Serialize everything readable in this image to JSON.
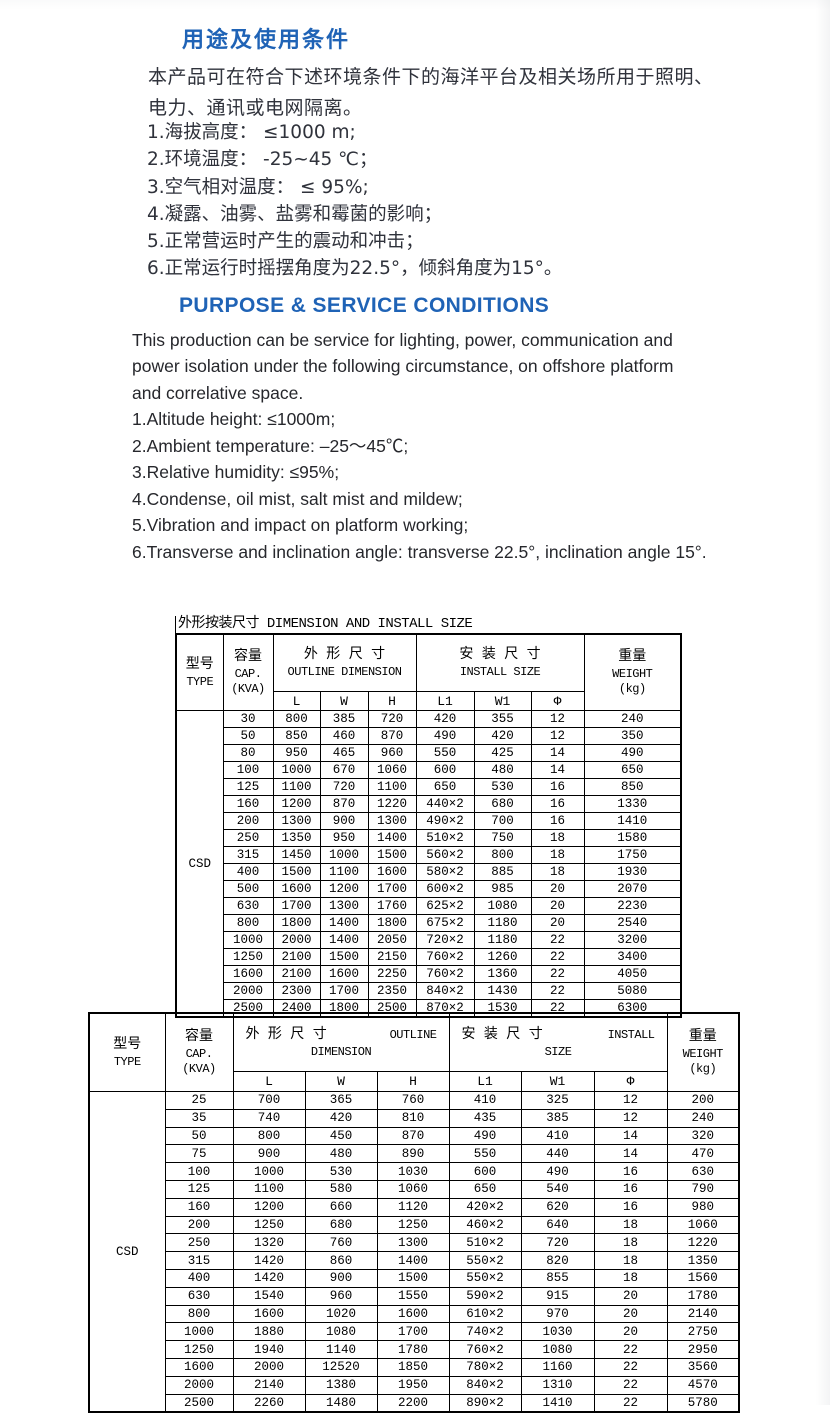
{
  "page": {
    "accent_blue": "#1f63b6",
    "background": "#ffffff"
  },
  "section_cn": {
    "heading": "用途及使用条件",
    "intro": "本产品可在符合下述环境条件下的海洋平台及相关场所用于照明、电力、通讯或电网隔离。",
    "items": [
      "1.海拔高度： ≤1000 m;",
      "2.环境温度： -25~45 ℃；",
      "3.空气相对温度： ≤ 95%;",
      "4.凝露、油雾、盐雾和霉菌的影响；",
      "5.正常营运时产生的震动和冲击；",
      "6.正常运行时摇摆角度为22.5°，倾斜角度为15°。"
    ]
  },
  "section_en": {
    "heading": "PURPOSE & SERVICE CONDITIONS",
    "intro": "This production can be service for lighting, power, communication and power isolation under the following circumstance, on offshore platform and correlative space.",
    "items": [
      "1.Altitude height: ≤1000m;",
      "2.Ambient temperature: –25～45℃;",
      "3.Relative humidity: ≤95%;",
      "4.Condense, oil mist, salt mist and mildew;",
      "5.Vibration and impact on platform working;",
      "6.Transverse and inclination angle: transverse 22.5°, inclination angle 15°."
    ]
  },
  "table1": {
    "title": "外形按装尺寸 DIMENSION AND INSTALL SIZE",
    "header": {
      "type_cn": "型号",
      "type_en": "TYPE",
      "cap_cn": "容量",
      "cap_en": "CAP.",
      "cap_unit": "(KVA)",
      "outline_cn": "外 形 尺 寸",
      "outline_en": "OUTLINE DIMENSION",
      "install_cn": "安 装 尺 寸",
      "install_en": "INSTALL SIZE",
      "weight_cn": "重量",
      "weight_en": "WEIGHT",
      "weight_unit": "(kg)",
      "sub": [
        "L",
        "W",
        "H",
        "L1",
        "W1",
        "Φ"
      ]
    },
    "type_value": "CSD",
    "rows": [
      [
        "30",
        "800",
        "385",
        "720",
        "420",
        "355",
        "12",
        "240"
      ],
      [
        "50",
        "850",
        "460",
        "870",
        "490",
        "420",
        "12",
        "350"
      ],
      [
        "80",
        "950",
        "465",
        "960",
        "550",
        "425",
        "14",
        "490"
      ],
      [
        "100",
        "1000",
        "670",
        "1060",
        "600",
        "480",
        "14",
        "650"
      ],
      [
        "125",
        "1100",
        "720",
        "1100",
        "650",
        "530",
        "16",
        "850"
      ],
      [
        "160",
        "1200",
        "870",
        "1220",
        "440×2",
        "680",
        "16",
        "1330"
      ],
      [
        "200",
        "1300",
        "900",
        "1300",
        "490×2",
        "700",
        "16",
        "1410"
      ],
      [
        "250",
        "1350",
        "950",
        "1400",
        "510×2",
        "750",
        "18",
        "1580"
      ],
      [
        "315",
        "1450",
        "1000",
        "1500",
        "560×2",
        "800",
        "18",
        "1750"
      ],
      [
        "400",
        "1500",
        "1100",
        "1600",
        "580×2",
        "885",
        "18",
        "1930"
      ],
      [
        "500",
        "1600",
        "1200",
        "1700",
        "600×2",
        "985",
        "20",
        "2070"
      ],
      [
        "630",
        "1700",
        "1300",
        "1760",
        "625×2",
        "1080",
        "20",
        "2230"
      ],
      [
        "800",
        "1800",
        "1400",
        "1800",
        "675×2",
        "1180",
        "20",
        "2540"
      ],
      [
        "1000",
        "2000",
        "1400",
        "2050",
        "720×2",
        "1180",
        "22",
        "3200"
      ],
      [
        "1250",
        "2100",
        "1500",
        "2150",
        "760×2",
        "1260",
        "22",
        "3400"
      ],
      [
        "1600",
        "2100",
        "1600",
        "2250",
        "760×2",
        "1360",
        "22",
        "4050"
      ],
      [
        "2000",
        "2300",
        "1700",
        "2350",
        "840×2",
        "1430",
        "22",
        "5080"
      ],
      [
        "2500",
        "2400",
        "1800",
        "2500",
        "870×2",
        "1530",
        "22",
        "6300"
      ]
    ]
  },
  "table2": {
    "header": {
      "type_cn": "型号",
      "type_en": "TYPE",
      "cap_cn": "容量",
      "cap_en": "CAP.",
      "cap_unit": "(KVA)",
      "outline_cn": "外 形 尺 寸",
      "outline_en_right": "OUTLINE",
      "outline_en_below": "DIMENSION",
      "install_cn": "安 装 尺 寸",
      "install_en_right": "INSTALL",
      "install_en_below": "SIZE",
      "weight_cn": "重量",
      "weight_en": "WEIGHT",
      "weight_unit": "(kg)",
      "sub": [
        "L",
        "W",
        "H",
        "L1",
        "W1",
        "Φ"
      ]
    },
    "type_value": "CSD",
    "rows": [
      [
        "25",
        "700",
        "365",
        "760",
        "410",
        "325",
        "12",
        "200"
      ],
      [
        "35",
        "740",
        "420",
        "810",
        "435",
        "385",
        "12",
        "240"
      ],
      [
        "50",
        "800",
        "450",
        "870",
        "490",
        "410",
        "14",
        "320"
      ],
      [
        "75",
        "900",
        "480",
        "890",
        "550",
        "440",
        "14",
        "470"
      ],
      [
        "100",
        "1000",
        "530",
        "1030",
        "600",
        "490",
        "16",
        "630"
      ],
      [
        "125",
        "1100",
        "580",
        "1060",
        "650",
        "540",
        "16",
        "790"
      ],
      [
        "160",
        "1200",
        "660",
        "1120",
        "420×2",
        "620",
        "16",
        "980"
      ],
      [
        "200",
        "1250",
        "680",
        "1250",
        "460×2",
        "640",
        "18",
        "1060"
      ],
      [
        "250",
        "1320",
        "760",
        "1300",
        "510×2",
        "720",
        "18",
        "1220"
      ],
      [
        "315",
        "1420",
        "860",
        "1400",
        "550×2",
        "820",
        "18",
        "1350"
      ],
      [
        "400",
        "1420",
        "900",
        "1500",
        "550×2",
        "855",
        "18",
        "1560"
      ],
      [
        "630",
        "1540",
        "960",
        "1550",
        "590×2",
        "915",
        "20",
        "1780"
      ],
      [
        "800",
        "1600",
        "1020",
        "1600",
        "610×2",
        "970",
        "20",
        "2140"
      ],
      [
        "1000",
        "1880",
        "1080",
        "1700",
        "740×2",
        "1030",
        "20",
        "2750"
      ],
      [
        "1250",
        "1940",
        "1140",
        "1780",
        "760×2",
        "1080",
        "22",
        "2950"
      ],
      [
        "1600",
        "2000",
        "12520",
        "1850",
        "780×2",
        "1160",
        "22",
        "3560"
      ],
      [
        "2000",
        "2140",
        "1380",
        "1950",
        "840×2",
        "1310",
        "22",
        "4570"
      ],
      [
        "2500",
        "2260",
        "1480",
        "2200",
        "890×2",
        "1410",
        "22",
        "5780"
      ]
    ]
  }
}
